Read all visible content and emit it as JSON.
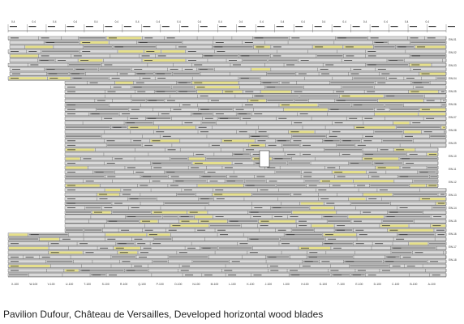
{
  "caption": "Pavilion Dufour, Château de Versailles, Developed horizontal wood blades",
  "top_labels": [
    "0.4",
    "0.4",
    "0.4",
    "0.4",
    "0.4",
    "0.4",
    "0.4",
    "0.4",
    "0.4",
    "0.4",
    "0.4",
    "0.4",
    "0.4",
    "0.4",
    "0.4",
    "0.4",
    "0.4",
    "0.4",
    "0.4",
    "0.4",
    "0.4"
  ],
  "bottom_labels": [
    "X-100",
    "W-100",
    "V-100",
    "U-100",
    "T-100",
    "S-100",
    "R-100",
    "Q-100",
    "P-100",
    "O-100",
    "N-100",
    "M-100",
    "L-100",
    "K-100",
    "J-100",
    "I-100",
    "H-100",
    "G-100",
    "F-100",
    "E-100",
    "D-100",
    "C-100",
    "B-100",
    "A-100"
  ],
  "right_labels": [
    "EW-01",
    "EW-02",
    "EW-03",
    "EW-04",
    "EW-05",
    "EW-06",
    "EW-07",
    "EW-08",
    "EW-09",
    "EW-10",
    "EW-11",
    "EW-12",
    "EW-13",
    "EW-14",
    "EW-15",
    "EW-16",
    "EW-17",
    "EW-18"
  ],
  "colors": {
    "line": "#333333",
    "blade_fill": "#d9d9d9",
    "blade_dark": "#8a8a8a",
    "highlight": "#e6e08a",
    "border": "#555555"
  }
}
